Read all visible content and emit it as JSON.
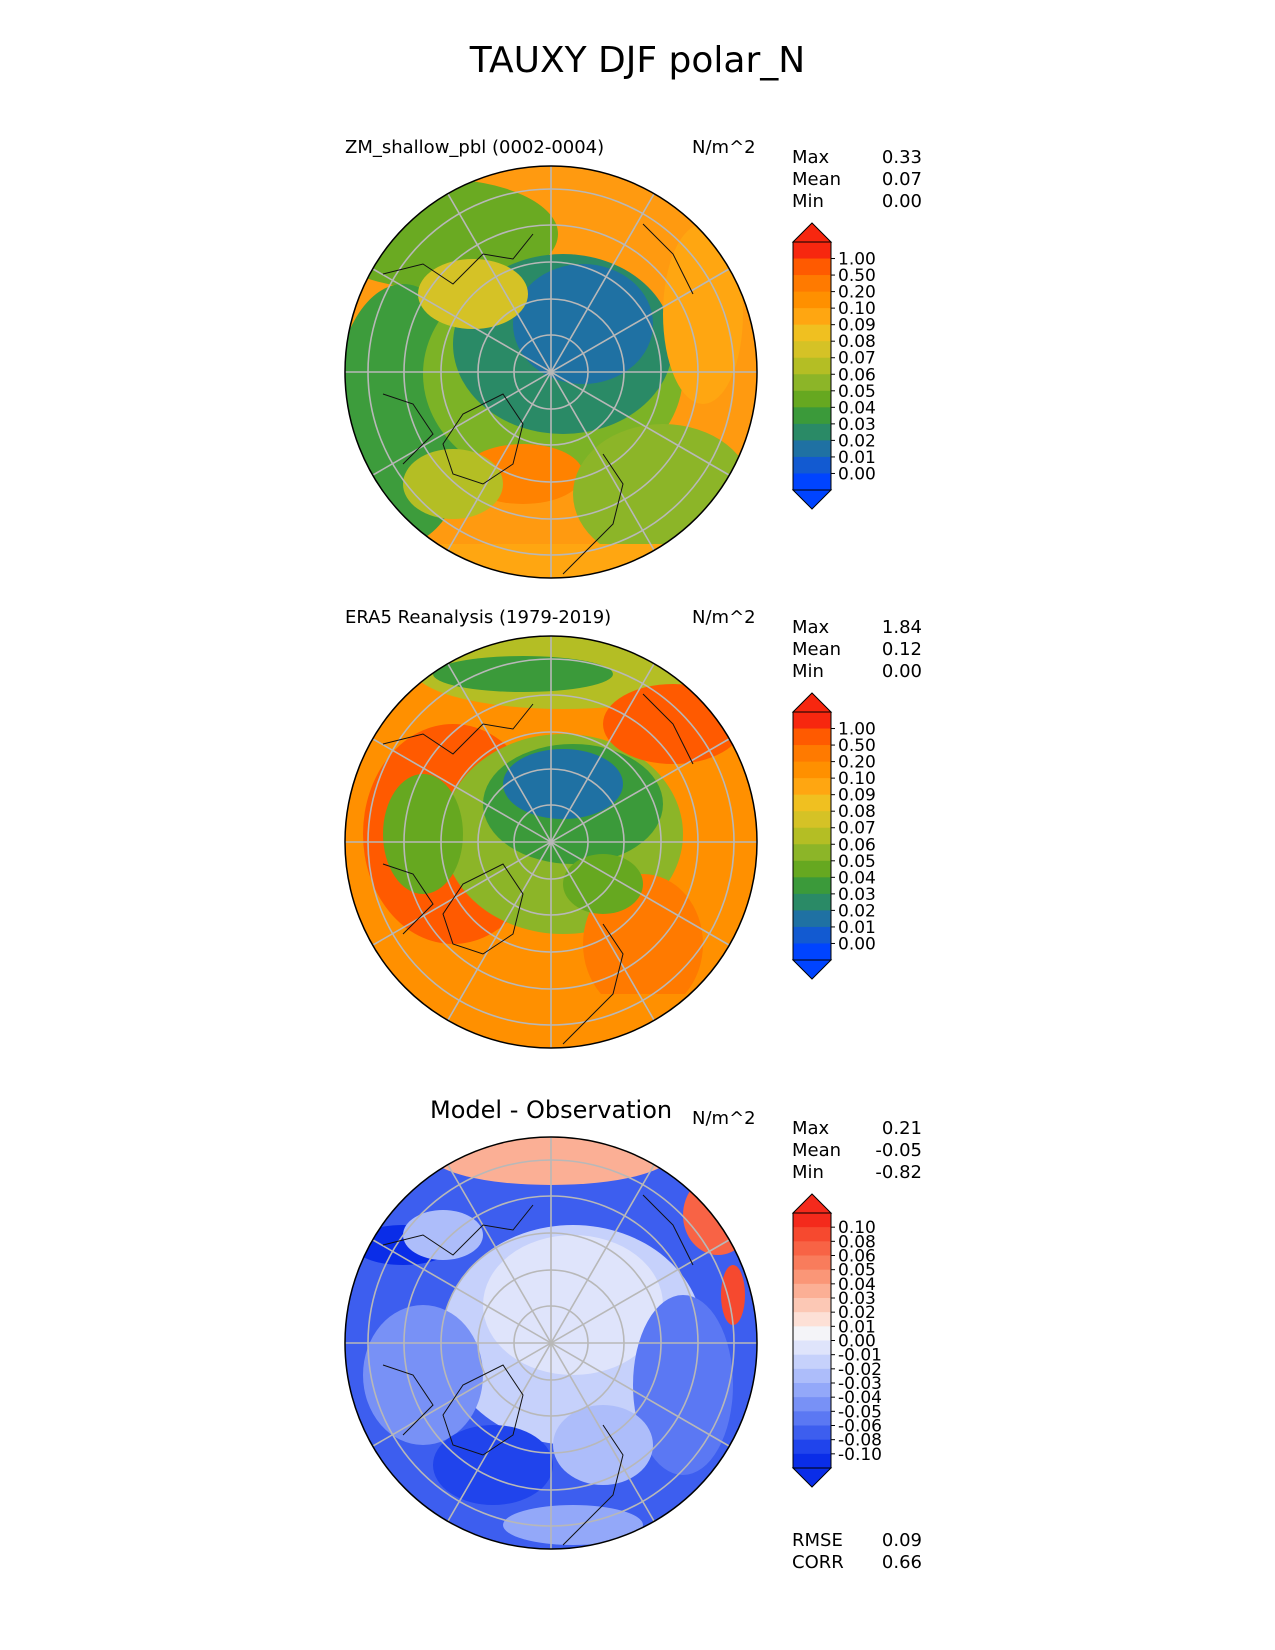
{
  "figure": {
    "title": "TAUXY DJF polar_N"
  },
  "panels": [
    {
      "title": "ZM_shallow_pbl (0002-0004)",
      "units": "N/m^2",
      "stats": [
        {
          "label": "Max",
          "value": "0.33"
        },
        {
          "label": "Mean",
          "value": "0.07"
        },
        {
          "label": "Min",
          "value": "0.00"
        }
      ]
    },
    {
      "title": "ERA5 Reanalysis (1979-2019)",
      "units": "N/m^2",
      "stats": [
        {
          "label": "Max",
          "value": "1.84"
        },
        {
          "label": "Mean",
          "value": "0.12"
        },
        {
          "label": "Min",
          "value": "0.00"
        }
      ]
    },
    {
      "title": "Model - Observation",
      "units": "N/m^2",
      "stats": [
        {
          "label": "Max",
          "value": "0.21"
        },
        {
          "label": "Mean",
          "value": "-0.05"
        },
        {
          "label": "Min",
          "value": "-0.82"
        }
      ]
    }
  ],
  "metrics": [
    {
      "label": "RMSE",
      "value": "0.09"
    },
    {
      "label": "CORR",
      "value": "0.66"
    }
  ],
  "chart_data": [
    {
      "type": "heatmap",
      "projection": "north polar stereographic",
      "title": "ZM_shallow_pbl (0002-0004)",
      "units": "N/m^2",
      "max": 0.33,
      "mean": 0.07,
      "min": 0.0,
      "colorbar_ticks": [
        "1.00",
        "0.50",
        "0.20",
        "0.10",
        "0.09",
        "0.08",
        "0.07",
        "0.06",
        "0.05",
        "0.04",
        "0.03",
        "0.02",
        "0.01",
        "0.00"
      ],
      "colors": [
        "#f7270f",
        "#ff5a00",
        "#ff7a00",
        "#ff9000",
        "#ffa611",
        "#f0c020",
        "#d5c226",
        "#b4be24",
        "#8cb528",
        "#66a820",
        "#3b9a3a",
        "#2a8a66",
        "#1f71a3",
        "#125ad1",
        "#0044ff"
      ]
    },
    {
      "type": "heatmap",
      "projection": "north polar stereographic",
      "title": "ERA5 Reanalysis (1979-2019)",
      "units": "N/m^2",
      "max": 1.84,
      "mean": 0.12,
      "min": 0.0,
      "colorbar_ticks": [
        "1.00",
        "0.50",
        "0.20",
        "0.10",
        "0.09",
        "0.08",
        "0.07",
        "0.06",
        "0.05",
        "0.04",
        "0.03",
        "0.02",
        "0.01",
        "0.00"
      ],
      "colors": [
        "#f7270f",
        "#ff5a00",
        "#ff7a00",
        "#ff9000",
        "#ffa611",
        "#f0c020",
        "#d5c226",
        "#b4be24",
        "#8cb528",
        "#66a820",
        "#3b9a3a",
        "#2a8a66",
        "#1f71a3",
        "#125ad1",
        "#0044ff"
      ]
    },
    {
      "type": "heatmap",
      "projection": "north polar stereographic",
      "title": "Model - Observation",
      "units": "N/m^2",
      "max": 0.21,
      "mean": -0.05,
      "min": -0.82,
      "rmse": 0.09,
      "corr": 0.66,
      "colorbar_ticks": [
        "0.10",
        "0.08",
        "0.06",
        "0.05",
        "0.04",
        "0.03",
        "0.02",
        "0.01",
        "0.00",
        "-0.01",
        "-0.02",
        "-0.03",
        "-0.04",
        "-0.05",
        "-0.06",
        "-0.08",
        "-0.10"
      ],
      "colors": [
        "#f42a1c",
        "#f6492f",
        "#f86345",
        "#f97c5c",
        "#fa9677",
        "#fbaf95",
        "#fcc8b5",
        "#fde0d6",
        "#f4f4f8",
        "#dfe4fb",
        "#c6d1fb",
        "#adbdfa",
        "#93a8f9",
        "#7891f6",
        "#5b78f3",
        "#3d5eef",
        "#2044ec",
        "#0a2de8"
      ]
    }
  ]
}
